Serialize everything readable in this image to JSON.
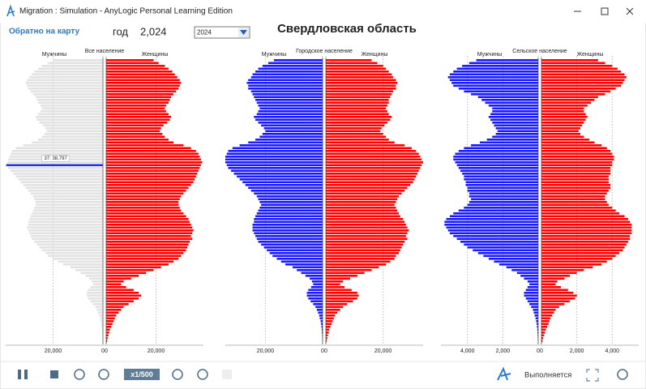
{
  "window": {
    "title": "Migration : Simulation - AnyLogic Personal Learning Edition"
  },
  "header": {
    "back_link": "Обратно на карту",
    "year_label": "год",
    "year_value": "2,024",
    "year_select": "2024",
    "title": "Свердловская область"
  },
  "toolbar": {
    "speed": "x1/500",
    "status": "Выполняется"
  },
  "chart_data": [
    {
      "type": "pyramid",
      "title": "Все население",
      "xlim": [
        0,
        39000
      ],
      "xticks": [
        0,
        {
          "value": 20000,
          "label": "20,000"
        }
      ],
      "tooltip": "37: 38,797",
      "highlight": 37,
      "highlight_color": "#2233dd",
      "series": [
        {
          "name": "Мужчины",
          "color": "#e2e2e2",
          "values": [
            20000,
            22000,
            24500,
            26000,
            27500,
            28500,
            29500,
            30500,
            31000,
            30500,
            30000,
            29000,
            28000,
            27000,
            26500,
            26000,
            25000,
            24500,
            25000,
            26000,
            27000,
            26500,
            25500,
            24000,
            23000,
            22500,
            23500,
            24500,
            26000,
            28500,
            32000,
            35000,
            36500,
            37000,
            37500,
            38000,
            38300,
            38797,
            38000,
            37000,
            36000,
            35000,
            34000,
            33000,
            32000,
            31000,
            30000,
            29000,
            28000,
            27500,
            27000,
            27000,
            27500,
            28000,
            28500,
            29000,
            29500,
            30000,
            30000,
            30500,
            30000,
            29500,
            29000,
            28500,
            27500,
            26500,
            25500,
            24500,
            23000,
            22000,
            20000,
            18000,
            16000,
            13000,
            11000,
            9000,
            7000,
            5500,
            4500,
            4000,
            5000,
            6000,
            6500,
            6500,
            6000,
            5000,
            4000,
            3000,
            2500,
            2000,
            1500,
            1200,
            900,
            700,
            500,
            400,
            300,
            200,
            150,
            100
          ]
        },
        {
          "name": "Женщины",
          "color": "#ff0000",
          "values": [
            19000,
            21000,
            23500,
            25000,
            26500,
            27500,
            28500,
            29500,
            30000,
            29500,
            29000,
            28000,
            27000,
            26000,
            25500,
            25000,
            24000,
            23500,
            24000,
            25000,
            26000,
            25500,
            24500,
            23000,
            22000,
            21500,
            22500,
            23500,
            25000,
            27000,
            31000,
            34000,
            36000,
            37000,
            37500,
            38000,
            38500,
            38000,
            37500,
            37000,
            36500,
            36000,
            35500,
            35000,
            34000,
            33000,
            32000,
            31000,
            30000,
            29500,
            29000,
            29000,
            29500,
            30000,
            31000,
            32000,
            33000,
            33500,
            34000,
            34500,
            35000,
            34500,
            34000,
            34500,
            33500,
            33000,
            32500,
            32000,
            31000,
            30000,
            29000,
            27000,
            25000,
            22000,
            19000,
            16000,
            13000,
            10000,
            7000,
            6000,
            8000,
            11000,
            13000,
            14000,
            13000,
            11000,
            9000,
            7000,
            6000,
            5000,
            4000,
            3500,
            3000,
            2500,
            2000,
            1500,
            1200,
            900,
            600,
            400
          ]
        }
      ]
    },
    {
      "type": "pyramid",
      "title": "Городское население",
      "xlim": [
        0,
        34000
      ],
      "xticks": [
        0,
        {
          "value": 20000,
          "label": "20,000"
        }
      ],
      "series": [
        {
          "name": "Мужчины",
          "color": "#1a1aff",
          "values": [
            17000,
            19000,
            21000,
            22500,
            23500,
            24500,
            25000,
            26000,
            26500,
            26000,
            26000,
            25000,
            24500,
            24000,
            23500,
            23000,
            22500,
            22000,
            22500,
            23000,
            24000,
            23500,
            22500,
            21500,
            20500,
            20000,
            21000,
            22000,
            23500,
            26000,
            29000,
            31500,
            33000,
            33500,
            34000,
            34000,
            34000,
            33500,
            33000,
            32000,
            31000,
            30000,
            29000,
            28000,
            27000,
            26000,
            25000,
            24000,
            23000,
            22500,
            22000,
            21500,
            22000,
            22500,
            23000,
            23500,
            24000,
            24000,
            24500,
            24500,
            24500,
            24000,
            23500,
            23000,
            22500,
            21500,
            20500,
            19500,
            18500,
            17500,
            16000,
            14500,
            13000,
            10500,
            9000,
            7500,
            6000,
            4500,
            3700,
            3300,
            4000,
            5000,
            5500,
            5500,
            5000,
            4200,
            3300,
            2500,
            2000,
            1600,
            1200,
            1000,
            700,
            550,
            400,
            300,
            250,
            150,
            120,
            80
          ]
        },
        {
          "name": "Женщины",
          "color": "#ff0000",
          "values": [
            16000,
            18000,
            20000,
            21000,
            22000,
            23000,
            23500,
            24500,
            25000,
            24500,
            24500,
            23500,
            23000,
            22500,
            22000,
            22000,
            21500,
            21000,
            21500,
            22000,
            23000,
            22500,
            21500,
            20500,
            19500,
            19000,
            20000,
            21000,
            22000,
            24000,
            27500,
            30000,
            31500,
            32500,
            33000,
            33500,
            34000,
            33500,
            33000,
            32500,
            32000,
            31500,
            31000,
            30500,
            29500,
            28500,
            27500,
            26500,
            25500,
            25000,
            24500,
            24000,
            24500,
            25000,
            25500,
            26000,
            27000,
            27500,
            28000,
            28500,
            29000,
            28500,
            28000,
            28500,
            27500,
            27000,
            26500,
            26000,
            25500,
            24500,
            24000,
            22500,
            21000,
            18500,
            16000,
            13500,
            11000,
            8500,
            6000,
            5000,
            6500,
            9000,
            11000,
            11500,
            11000,
            9500,
            7500,
            6000,
            5000,
            4000,
            3200,
            2800,
            2400,
            2000,
            1600,
            1200,
            1000,
            700,
            500,
            300
          ]
        }
      ]
    },
    {
      "type": "pyramid",
      "title": "Сельское население",
      "xlim": [
        0,
        5500
      ],
      "xticks": [
        0,
        {
          "value": 2000,
          "label": "2,000"
        },
        {
          "value": 4000,
          "label": "4,000"
        }
      ],
      "series": [
        {
          "name": "Мужчины",
          "color": "#1a1aff",
          "values": [
            3500,
            3900,
            4300,
            4600,
            4800,
            5000,
            5100,
            5000,
            4900,
            4800,
            4500,
            4200,
            3800,
            3400,
            3200,
            3000,
            2800,
            2600,
            2600,
            2700,
            2800,
            2700,
            2600,
            2500,
            2400,
            2300,
            2400,
            2600,
            2900,
            3300,
            3800,
            4200,
            4500,
            4700,
            4800,
            4800,
            4700,
            4600,
            4500,
            4400,
            4300,
            4200,
            4200,
            4100,
            4100,
            4000,
            4000,
            3900,
            3900,
            3800,
            3900,
            4000,
            4200,
            4500,
            4800,
            5000,
            5200,
            5300,
            5300,
            5200,
            5100,
            5000,
            4800,
            4600,
            4400,
            4200,
            4000,
            3700,
            3400,
            3100,
            2800,
            2500,
            2200,
            1800,
            1500,
            1200,
            1000,
            800,
            600,
            500,
            600,
            700,
            800,
            800,
            700,
            600,
            500,
            400,
            300,
            250,
            200,
            150,
            120,
            90,
            70,
            50,
            40,
            30,
            20,
            10
          ]
        },
        {
          "name": "Женщины",
          "color": "#ff0000",
          "values": [
            3200,
            3600,
            4000,
            4300,
            4500,
            4700,
            4800,
            4700,
            4600,
            4500,
            4200,
            3900,
            3600,
            3200,
            3000,
            2800,
            2600,
            2400,
            2400,
            2500,
            2600,
            2500,
            2400,
            2300,
            2200,
            2100,
            2200,
            2400,
            2700,
            3000,
            3400,
            3700,
            3900,
            4000,
            4100,
            4100,
            4000,
            4000,
            3900,
            3900,
            3900,
            3800,
            3800,
            3800,
            3900,
            3900,
            3800,
            3700,
            3600,
            3600,
            3700,
            3800,
            4000,
            4200,
            4400,
            4700,
            4900,
            5000,
            5100,
            5100,
            5100,
            5100,
            5000,
            5000,
            4900,
            4800,
            4700,
            4600,
            4400,
            4200,
            4000,
            3700,
            3400,
            2900,
            2400,
            2000,
            1600,
            1300,
            900,
            800,
            1100,
            1500,
            1800,
            2000,
            1900,
            1600,
            1300,
            1000,
            800,
            700,
            600,
            500,
            450,
            400,
            320,
            250,
            200,
            150,
            100,
            60
          ]
        }
      ]
    }
  ]
}
